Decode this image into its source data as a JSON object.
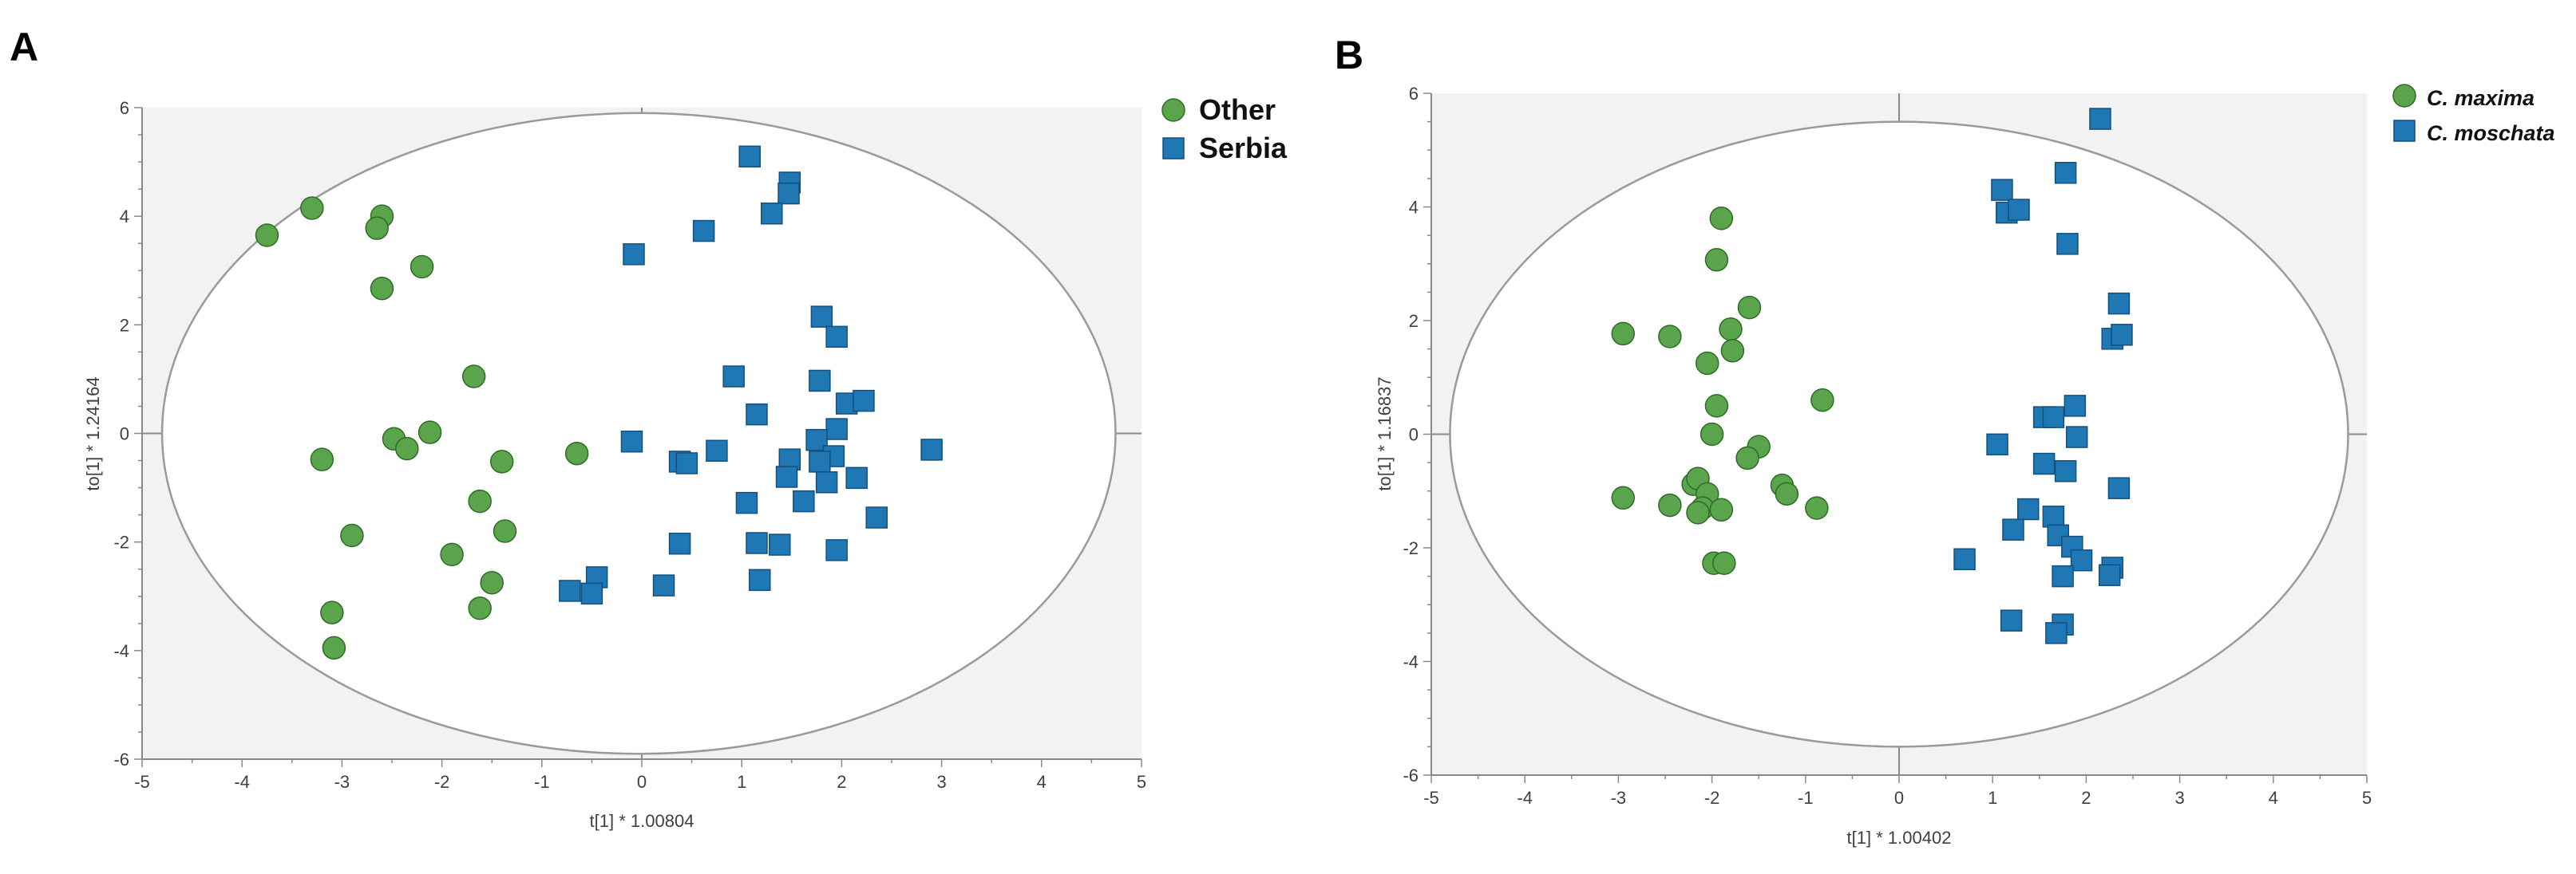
{
  "chart_data": [
    {
      "panel": "A",
      "type": "scatter",
      "title": "",
      "xlabel": "t[1] * 1.00804",
      "ylabel": "to[1] * 1.24164",
      "xlim": [
        -5,
        5
      ],
      "ylim": [
        -6,
        6
      ],
      "xticks": [
        "-5",
        "-4",
        "-3",
        "-2",
        "-1",
        "0",
        "1",
        "2",
        "3",
        "4",
        "5"
      ],
      "yticks": [
        "6",
        "4",
        "2",
        "0",
        "-2",
        "-4",
        "-6"
      ],
      "ellipse": {
        "cx": -0.03,
        "cy": 0,
        "rx": 4.77,
        "ry": 5.9
      },
      "legend_position": "top-right",
      "series": [
        {
          "name": "Other",
          "marker": "circle",
          "color": "#5aa54b",
          "points": [
            [
              -3.75,
              3.65
            ],
            [
              -3.3,
              4.15
            ],
            [
              -2.6,
              4.0
            ],
            [
              -2.65,
              3.78
            ],
            [
              -2.6,
              2.67
            ],
            [
              -2.2,
              3.07
            ],
            [
              -1.68,
              1.05
            ],
            [
              -2.48,
              -0.1
            ],
            [
              -2.35,
              -0.28
            ],
            [
              -2.12,
              0.02
            ],
            [
              -3.2,
              -0.48
            ],
            [
              -2.9,
              -1.88
            ],
            [
              -3.1,
              -3.3
            ],
            [
              -3.08,
              -3.95
            ],
            [
              -1.9,
              -2.23
            ],
            [
              -1.62,
              -1.25
            ],
            [
              -1.4,
              -0.52
            ],
            [
              -1.37,
              -1.8
            ],
            [
              -1.5,
              -2.75
            ],
            [
              -1.62,
              -3.22
            ],
            [
              -0.65,
              -0.37
            ]
          ]
        },
        {
          "name": "Serbia",
          "marker": "square",
          "color": "#1f77b4",
          "points": [
            [
              1.08,
              5.1
            ],
            [
              1.48,
              4.62
            ],
            [
              1.47,
              4.42
            ],
            [
              1.3,
              4.05
            ],
            [
              0.62,
              3.73
            ],
            [
              -0.08,
              3.3
            ],
            [
              1.8,
              2.15
            ],
            [
              1.95,
              1.78
            ],
            [
              0.92,
              1.05
            ],
            [
              1.15,
              0.35
            ],
            [
              1.78,
              0.97
            ],
            [
              2.05,
              0.55
            ],
            [
              2.22,
              0.6
            ],
            [
              1.95,
              0.08
            ],
            [
              1.75,
              -0.12
            ],
            [
              1.92,
              -0.42
            ],
            [
              1.78,
              -0.52
            ],
            [
              1.48,
              -0.48
            ],
            [
              1.45,
              -0.8
            ],
            [
              1.85,
              -0.9
            ],
            [
              2.15,
              -0.82
            ],
            [
              2.35,
              -1.55
            ],
            [
              2.9,
              -0.3
            ],
            [
              0.75,
              -0.32
            ],
            [
              0.38,
              -0.52
            ],
            [
              0.45,
              -0.55
            ],
            [
              -0.1,
              -0.15
            ],
            [
              1.05,
              -1.28
            ],
            [
              1.62,
              -1.25
            ],
            [
              1.15,
              -2.02
            ],
            [
              1.38,
              -2.05
            ],
            [
              1.95,
              -2.15
            ],
            [
              0.38,
              -2.03
            ],
            [
              1.18,
              -2.7
            ],
            [
              0.22,
              -2.8
            ],
            [
              -0.45,
              -2.65
            ],
            [
              -0.5,
              -2.95
            ],
            [
              -0.72,
              -2.9
            ]
          ]
        }
      ]
    },
    {
      "panel": "B",
      "type": "scatter",
      "title": "",
      "xlabel": "t[1] * 1.00402",
      "ylabel": "to[1] * 1.16837",
      "xlim": [
        -5,
        5
      ],
      "ylim": [
        -6,
        6
      ],
      "xticks": [
        "-5",
        "-4",
        "-3",
        "-2",
        "-1",
        "0",
        "1",
        "2",
        "3",
        "4",
        "5"
      ],
      "yticks": [
        "6",
        "4",
        "2",
        "0",
        "-2",
        "-4",
        "-6"
      ],
      "ellipse": {
        "cx": 0,
        "cy": 0,
        "rx": 4.8,
        "ry": 5.5
      },
      "legend_position": "top-right",
      "series": [
        {
          "name": "C. maxima",
          "marker": "circle",
          "color": "#5aa54b",
          "points": [
            [
              -1.9,
              3.8
            ],
            [
              -1.95,
              3.07
            ],
            [
              -1.6,
              2.23
            ],
            [
              -1.8,
              1.85
            ],
            [
              -1.78,
              1.47
            ],
            [
              -2.05,
              1.25
            ],
            [
              -2.95,
              1.77
            ],
            [
              -2.45,
              1.72
            ],
            [
              -1.95,
              0.5
            ],
            [
              -0.82,
              0.6
            ],
            [
              -2.0,
              0.0
            ],
            [
              -1.5,
              -0.22
            ],
            [
              -1.62,
              -0.42
            ],
            [
              -2.2,
              -0.88
            ],
            [
              -2.15,
              -0.78
            ],
            [
              -2.05,
              -1.05
            ],
            [
              -2.1,
              -1.3
            ],
            [
              -2.15,
              -1.38
            ],
            [
              -2.95,
              -1.12
            ],
            [
              -2.45,
              -1.25
            ],
            [
              -1.9,
              -1.33
            ],
            [
              -1.25,
              -0.9
            ],
            [
              -1.2,
              -1.05
            ],
            [
              -0.88,
              -1.3
            ],
            [
              -1.98,
              -2.27
            ],
            [
              -1.87,
              -2.27
            ]
          ]
        },
        {
          "name": "C. moschata",
          "marker": "square",
          "color": "#1f77b4",
          "points": [
            [
              2.15,
              5.55
            ],
            [
              1.78,
              4.6
            ],
            [
              1.1,
              4.3
            ],
            [
              1.15,
              3.9
            ],
            [
              1.28,
              3.95
            ],
            [
              1.8,
              3.35
            ],
            [
              2.35,
              2.3
            ],
            [
              2.28,
              1.68
            ],
            [
              2.38,
              1.75
            ],
            [
              1.55,
              0.3
            ],
            [
              1.65,
              0.3
            ],
            [
              1.88,
              0.5
            ],
            [
              1.05,
              -0.18
            ],
            [
              1.9,
              -0.05
            ],
            [
              1.55,
              -0.52
            ],
            [
              1.78,
              -0.65
            ],
            [
              2.35,
              -0.95
            ],
            [
              1.38,
              -1.32
            ],
            [
              1.22,
              -1.68
            ],
            [
              1.65,
              -1.45
            ],
            [
              1.7,
              -1.78
            ],
            [
              1.85,
              -1.98
            ],
            [
              1.95,
              -2.22
            ],
            [
              2.28,
              -2.35
            ],
            [
              2.25,
              -2.48
            ],
            [
              1.75,
              -2.5
            ],
            [
              0.7,
              -2.2
            ],
            [
              1.2,
              -3.28
            ],
            [
              1.75,
              -3.35
            ],
            [
              1.68,
              -3.5
            ]
          ]
        }
      ]
    }
  ]
}
